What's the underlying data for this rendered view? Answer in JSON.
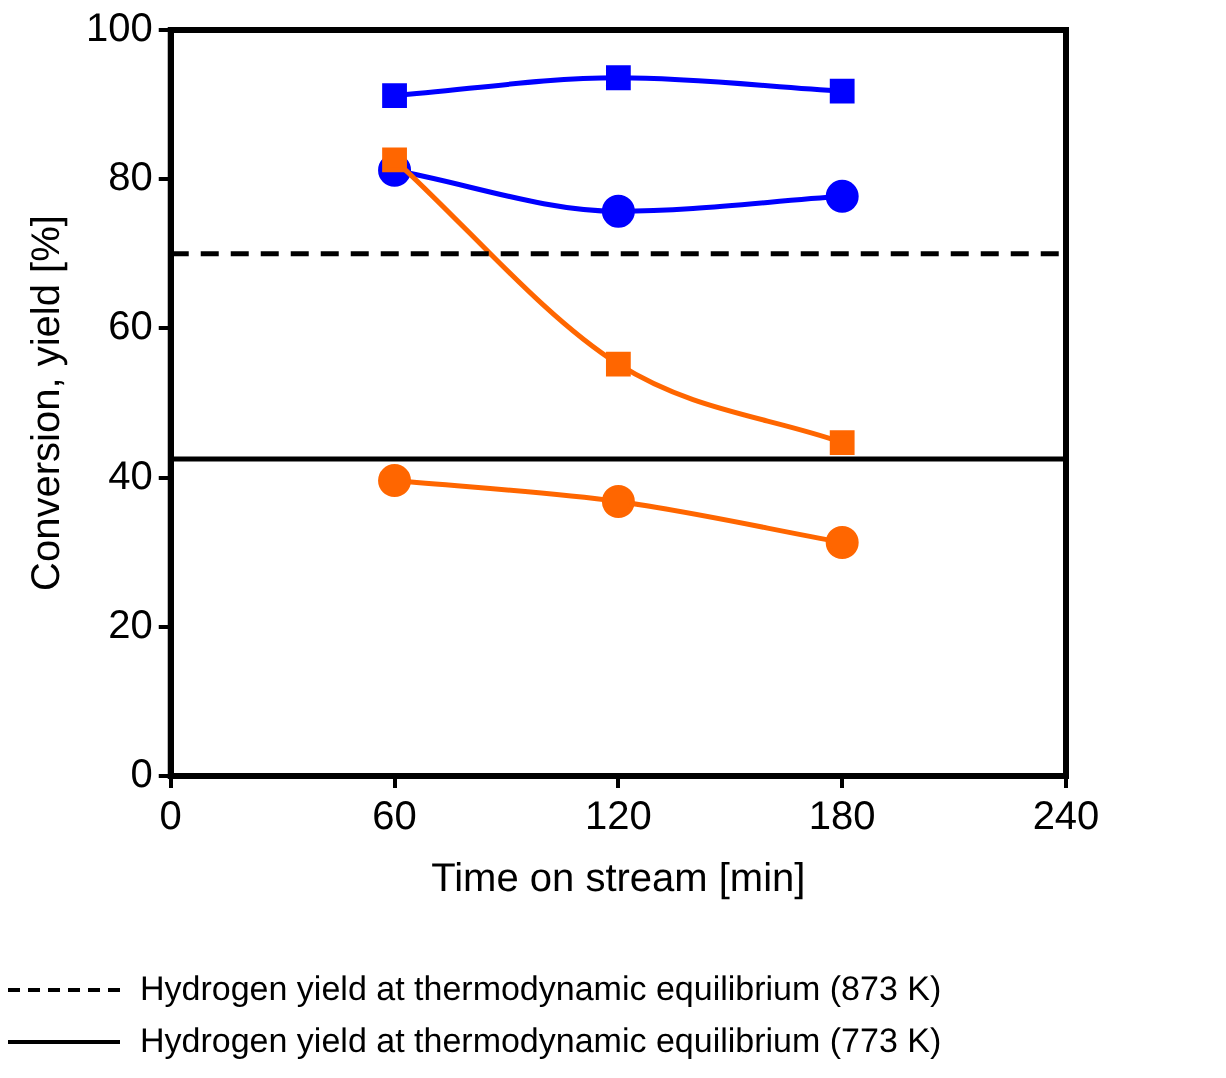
{
  "chart_data": {
    "type": "line",
    "xlabel": "Time on stream [min]",
    "ylabel": "Conversion, yield [%]",
    "x": [
      60,
      120,
      180
    ],
    "series": [
      {
        "color": "#0000ff",
        "marker": "square",
        "values": [
          91.2,
          93.6,
          91.8
        ]
      },
      {
        "color": "#0000ff",
        "marker": "circle",
        "values": [
          81.2,
          75.7,
          77.7
        ]
      },
      {
        "color": "#ff6600",
        "marker": "square",
        "values": [
          82.6,
          55.2,
          44.7
        ]
      },
      {
        "color": "#ff6600",
        "marker": "circle",
        "values": [
          39.6,
          36.8,
          31.3
        ]
      }
    ],
    "xlim": [
      0,
      240
    ],
    "xticks": [
      0,
      60,
      120,
      180,
      240
    ],
    "ylim": [
      0,
      100
    ],
    "yticks": [
      0,
      20,
      40,
      60,
      80,
      100
    ],
    "grid": false,
    "legend": "bottom",
    "ref_lines": [
      {
        "axis": "y",
        "value": 70,
        "label": "Hydrogen yield at thermodynamic equilibrium (873 K)",
        "color": "#000000",
        "line_style": "dashed"
      },
      {
        "axis": "y",
        "value": 42.5,
        "label": "Hydrogen yield at thermodynamic equilibrium (773 K)",
        "color": "#000000",
        "line_style": "solid"
      }
    ]
  }
}
